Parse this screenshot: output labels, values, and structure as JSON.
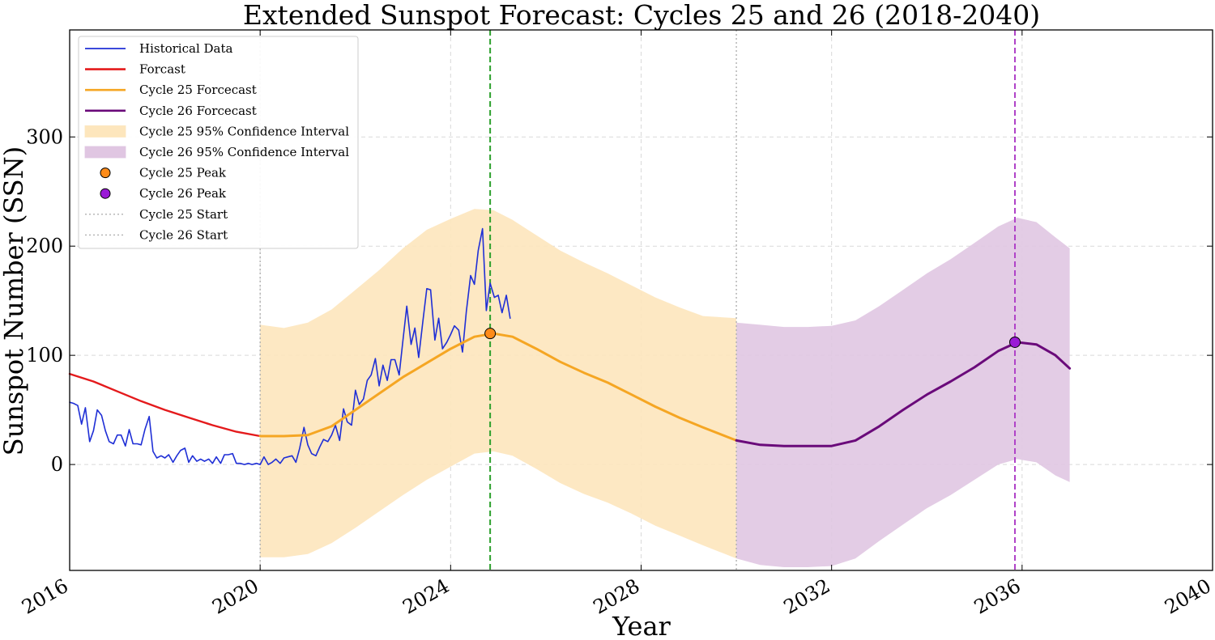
{
  "chart_data": {
    "type": "line",
    "title": "Extended Sunspot Forecast: Cycles 25 and 26 (2018-2040)",
    "xlabel": "Year",
    "ylabel": "Sunspot Number (SSN)",
    "xlim": [
      2016,
      2040
    ],
    "ylim": [
      -97,
      398
    ],
    "x_ticks": [
      2016,
      2020,
      2024,
      2028,
      2032,
      2036,
      2040
    ],
    "x_tick_labels": [
      "2016",
      "2020",
      "2024",
      "2028",
      "2032",
      "2036",
      "2040"
    ],
    "y_ticks": [
      0,
      100,
      200,
      300
    ],
    "y_tick_labels": [
      "0",
      "100",
      "200",
      "300"
    ],
    "grid": true,
    "legend_position": "top-left",
    "colors": {
      "historical": "#1f2fd6",
      "forecast": "#e41a1c",
      "cycle25": "#f5a623",
      "cycle26": "#6a0a7a",
      "cycle25_peak_fill": "#ff8c1a",
      "cycle26_peak_fill": "#9a1ad6",
      "cycle25_band": "#fde6bd",
      "cycle26_band": "#e0c6e2",
      "peak25_vline": "#2ca02c",
      "peak26_vline": "#b042c8",
      "start_vline": "#b0b0b0"
    },
    "series": [
      {
        "name": "Historical Data",
        "x": [
          2016.0,
          2016.08,
          2016.17,
          2016.25,
          2016.33,
          2016.42,
          2016.5,
          2016.58,
          2016.67,
          2016.75,
          2016.83,
          2016.92,
          2017.0,
          2017.08,
          2017.17,
          2017.25,
          2017.33,
          2017.42,
          2017.5,
          2017.58,
          2017.67,
          2017.75,
          2017.83,
          2017.92,
          2018.0,
          2018.08,
          2018.17,
          2018.25,
          2018.33,
          2018.42,
          2018.5,
          2018.58,
          2018.67,
          2018.75,
          2018.83,
          2018.92,
          2019.0,
          2019.08,
          2019.17,
          2019.25,
          2019.33,
          2019.42,
          2019.5,
          2019.58,
          2019.67,
          2019.75,
          2019.83,
          2019.92,
          2020.0,
          2020.08,
          2020.17,
          2020.25,
          2020.33,
          2020.42,
          2020.5,
          2020.58,
          2020.67,
          2020.75,
          2020.83,
          2020.92,
          2021.0,
          2021.08,
          2021.17,
          2021.25,
          2021.33,
          2021.42,
          2021.5,
          2021.58,
          2021.67,
          2021.75,
          2021.83,
          2021.92,
          2022.0,
          2022.08,
          2022.17,
          2022.25,
          2022.33,
          2022.42,
          2022.5,
          2022.58,
          2022.67,
          2022.75,
          2022.83,
          2022.92,
          2023.0,
          2023.08,
          2023.17,
          2023.25,
          2023.33,
          2023.42,
          2023.5,
          2023.58,
          2023.67,
          2023.75,
          2023.83,
          2023.92,
          2024.0,
          2024.08,
          2024.17,
          2024.25,
          2024.33,
          2024.42,
          2024.5,
          2024.58,
          2024.67,
          2024.75,
          2024.83,
          2024.92,
          2025.0,
          2025.08,
          2025.17,
          2025.25
        ],
        "values": [
          57,
          56,
          54,
          37,
          52,
          21,
          31,
          50,
          45,
          31,
          21,
          19,
          27,
          27,
          17,
          32,
          19,
          19,
          18,
          32,
          44,
          12,
          6,
          8,
          6,
          9,
          2,
          8,
          13,
          15,
          2,
          8,
          3,
          5,
          3,
          5,
          1,
          7,
          1,
          9,
          9,
          10,
          1,
          1,
          0,
          1,
          0,
          1,
          0,
          7,
          0,
          2,
          5,
          1,
          6,
          7,
          8,
          2,
          15,
          34,
          18,
          10,
          8,
          16,
          23,
          21,
          27,
          36,
          22,
          51,
          39,
          36,
          68,
          55,
          60,
          77,
          82,
          97,
          72,
          91,
          77,
          96,
          96,
          82,
          114,
          145,
          110,
          125,
          98,
          132,
          161,
          160,
          114,
          134,
          106,
          112,
          119,
          127,
          123,
          103,
          140,
          173,
          165,
          196,
          216,
          141,
          166,
          153,
          155,
          139,
          155,
          134
        ]
      },
      {
        "name": "Forcast",
        "x": [
          2016.0,
          2016.5,
          2017.0,
          2017.5,
          2018.0,
          2018.5,
          2019.0,
          2019.5,
          2020.0
        ],
        "values": [
          83,
          76,
          67,
          58,
          50,
          43,
          36,
          30,
          26
        ]
      },
      {
        "name": "Cycle 25 Forcecast",
        "x": [
          2020.0,
          2020.5,
          2021.0,
          2021.5,
          2022.0,
          2022.5,
          2023.0,
          2023.5,
          2024.0,
          2024.5,
          2024.9,
          2025.3,
          2025.8,
          2026.3,
          2026.8,
          2027.3,
          2027.8,
          2028.3,
          2028.8,
          2029.3,
          2030.0
        ],
        "values": [
          26,
          26,
          27,
          35,
          50,
          65,
          80,
          93,
          106,
          117,
          120,
          117,
          106,
          94,
          84,
          75,
          64,
          53,
          43,
          34,
          22
        ]
      },
      {
        "name": "Cycle 26 Forcecast",
        "x": [
          2030.0,
          2030.5,
          2031.0,
          2031.5,
          2032.0,
          2032.5,
          2033.0,
          2033.5,
          2034.0,
          2034.5,
          2035.0,
          2035.5,
          2035.9,
          2036.3,
          2036.7,
          2037.0
        ],
        "values": [
          22,
          18,
          17,
          17,
          17,
          22,
          35,
          50,
          64,
          76,
          89,
          104,
          112,
          110,
          100,
          88
        ]
      }
    ],
    "bands": [
      {
        "name": "Cycle 25 95% Confidence Interval",
        "x": [
          2020.0,
          2020.5,
          2021.0,
          2021.5,
          2022.0,
          2022.5,
          2023.0,
          2023.5,
          2024.0,
          2024.5,
          2024.9,
          2025.3,
          2025.8,
          2026.3,
          2026.8,
          2027.3,
          2027.8,
          2028.3,
          2028.8,
          2029.3,
          2030.0
        ],
        "upper": [
          128,
          125,
          130,
          142,
          160,
          178,
          198,
          215,
          225,
          234,
          233,
          224,
          210,
          196,
          185,
          175,
          164,
          153,
          144,
          136,
          134
        ],
        "lower": [
          -85,
          -85,
          -82,
          -72,
          -58,
          -43,
          -28,
          -14,
          -2,
          10,
          12,
          8,
          -4,
          -17,
          -27,
          -35,
          -45,
          -56,
          -65,
          -74,
          -86
        ]
      },
      {
        "name": "Cycle 26 95% Confidence Interval",
        "x": [
          2030.0,
          2030.5,
          2031.0,
          2031.5,
          2032.0,
          2032.5,
          2033.0,
          2033.5,
          2034.0,
          2034.5,
          2035.0,
          2035.5,
          2035.9,
          2036.3,
          2036.7,
          2037.0
        ],
        "upper": [
          130,
          128,
          126,
          126,
          127,
          132,
          145,
          160,
          175,
          188,
          203,
          218,
          226,
          222,
          208,
          198
        ],
        "lower": [
          -86,
          -92,
          -94,
          -94,
          -93,
          -86,
          -70,
          -55,
          -40,
          -28,
          -14,
          0,
          5,
          2,
          -10,
          -16
        ]
      }
    ],
    "peaks": [
      {
        "name": "Cycle 25 Peak",
        "x": 2024.83,
        "y": 120
      },
      {
        "name": "Cycle 26 Peak",
        "x": 2035.85,
        "y": 112
      }
    ],
    "vlines": [
      {
        "name": "Cycle 25 Start",
        "x": 2020.0,
        "style": "dotted"
      },
      {
        "name": "Cycle 26 Start",
        "x": 2030.0,
        "style": "dotted"
      },
      {
        "name": "Cycle 25 Peak Date",
        "x": 2024.83,
        "style": "dashed"
      },
      {
        "name": "Cycle 26 Peak Date",
        "x": 2035.85,
        "style": "dashed"
      }
    ],
    "legend": [
      {
        "label": "Historical Data",
        "kind": "line",
        "color_key": "historical"
      },
      {
        "label": "Forcast",
        "kind": "line",
        "color_key": "forecast"
      },
      {
        "label": "Cycle 25 Forcecast",
        "kind": "line",
        "color_key": "cycle25"
      },
      {
        "label": "Cycle 26 Forcecast",
        "kind": "line",
        "color_key": "cycle26"
      },
      {
        "label": "Cycle 25 95% Confidence Interval",
        "kind": "patch",
        "color_key": "cycle25_band"
      },
      {
        "label": "Cycle 26 95% Confidence Interval",
        "kind": "patch",
        "color_key": "cycle26_band"
      },
      {
        "label": "Cycle 25 Peak",
        "kind": "marker",
        "color_key": "cycle25_peak_fill"
      },
      {
        "label": "Cycle 26 Peak",
        "kind": "marker",
        "color_key": "cycle26_peak_fill"
      },
      {
        "label": "Cycle 25 Start",
        "kind": "dotted",
        "color_key": "start_vline"
      },
      {
        "label": "Cycle 26 Start",
        "kind": "dotted",
        "color_key": "start_vline"
      }
    ]
  }
}
